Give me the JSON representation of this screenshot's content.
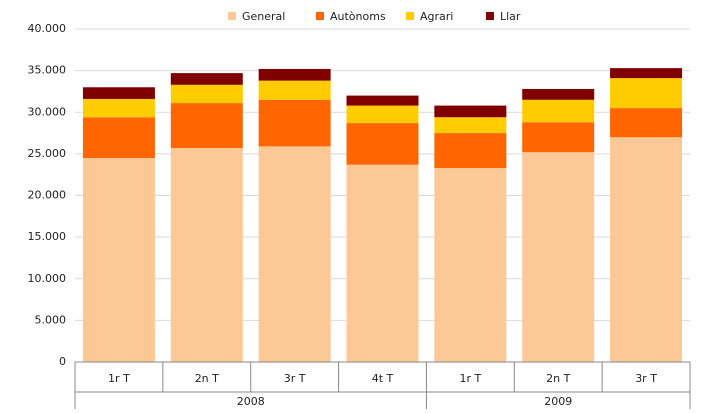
{
  "chart_data": {
    "type": "stacked_bar",
    "categories": [
      "1r T",
      "2n T",
      "3r T",
      "4t T",
      "1r T",
      "2n T",
      "3r T"
    ],
    "category_groups": [
      "2008",
      "2008",
      "2008",
      "2008",
      "2009",
      "2009",
      "2009"
    ],
    "series": [
      {
        "name": "General",
        "color": "#fcc896",
        "values": [
          24500,
          25700,
          25900,
          23700,
          23300,
          25200,
          27000
        ]
      },
      {
        "name": "Autònoms",
        "color": "#ff6600",
        "values": [
          4900,
          5400,
          5600,
          5000,
          4200,
          3600,
          3500
        ]
      },
      {
        "name": "Agrari",
        "color": "#ffcc00",
        "values": [
          2200,
          2200,
          2300,
          2100,
          1900,
          2700,
          3600
        ]
      },
      {
        "name": "Llar",
        "color": "#800000",
        "values": [
          1400,
          1400,
          1400,
          1200,
          1400,
          1300,
          1200
        ]
      }
    ],
    "ylim": [
      0,
      40000
    ],
    "yticks": [
      0,
      {
        "value": 5000,
        "label": "5.000"
      },
      {
        "value": 10000,
        "label": "10.000"
      },
      {
        "value": 15000,
        "label": "15.000"
      },
      {
        "value": 20000,
        "label": "20.000"
      },
      {
        "value": 25000,
        "label": "25.000"
      },
      {
        "value": 30000,
        "label": "30.000"
      },
      {
        "value": 35000,
        "label": "35.000"
      },
      {
        "value": 40000,
        "label": "40.000"
      }
    ],
    "grid": true,
    "legend": "top"
  }
}
